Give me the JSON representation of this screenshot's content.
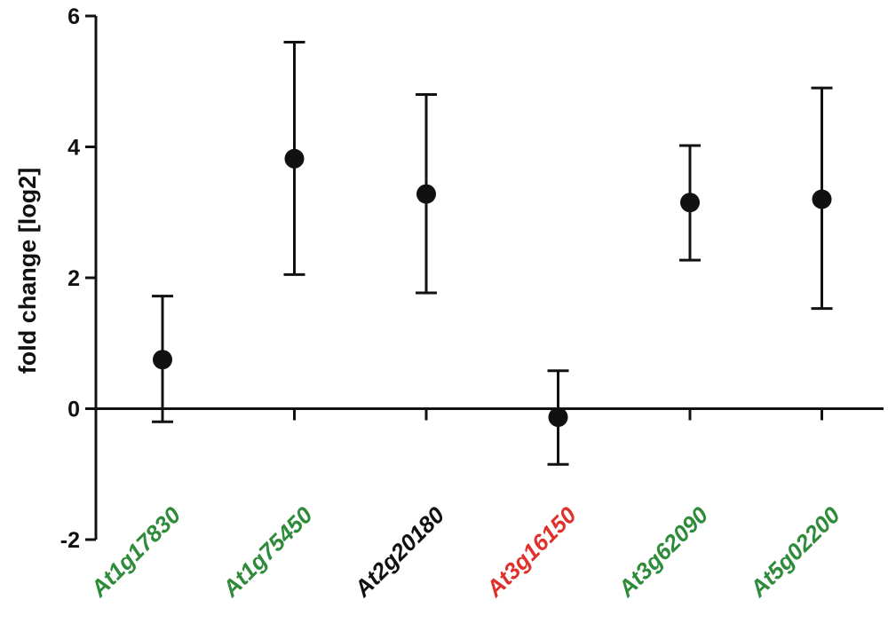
{
  "chart_data": {
    "type": "scatter",
    "ylabel": "fold change [log2]",
    "ylim": [
      -2,
      6
    ],
    "yticks": [
      -2,
      0,
      2,
      4,
      6
    ],
    "grid": false,
    "categories": [
      "At1g17830",
      "At1g75450",
      "At2g20180",
      "At3g16150",
      "At3g62090",
      "At5g02200"
    ],
    "category_colors": [
      "#2e8b3a",
      "#2e8b3a",
      "#111111",
      "#e0302a",
      "#2e8b3a",
      "#2e8b3a"
    ],
    "values": [
      0.75,
      3.82,
      3.28,
      -0.13,
      3.15,
      3.2
    ],
    "error_low": [
      -0.2,
      2.05,
      1.77,
      -0.85,
      2.27,
      1.53
    ],
    "error_high": [
      1.72,
      5.6,
      4.8,
      0.58,
      4.02,
      4.9
    ]
  }
}
